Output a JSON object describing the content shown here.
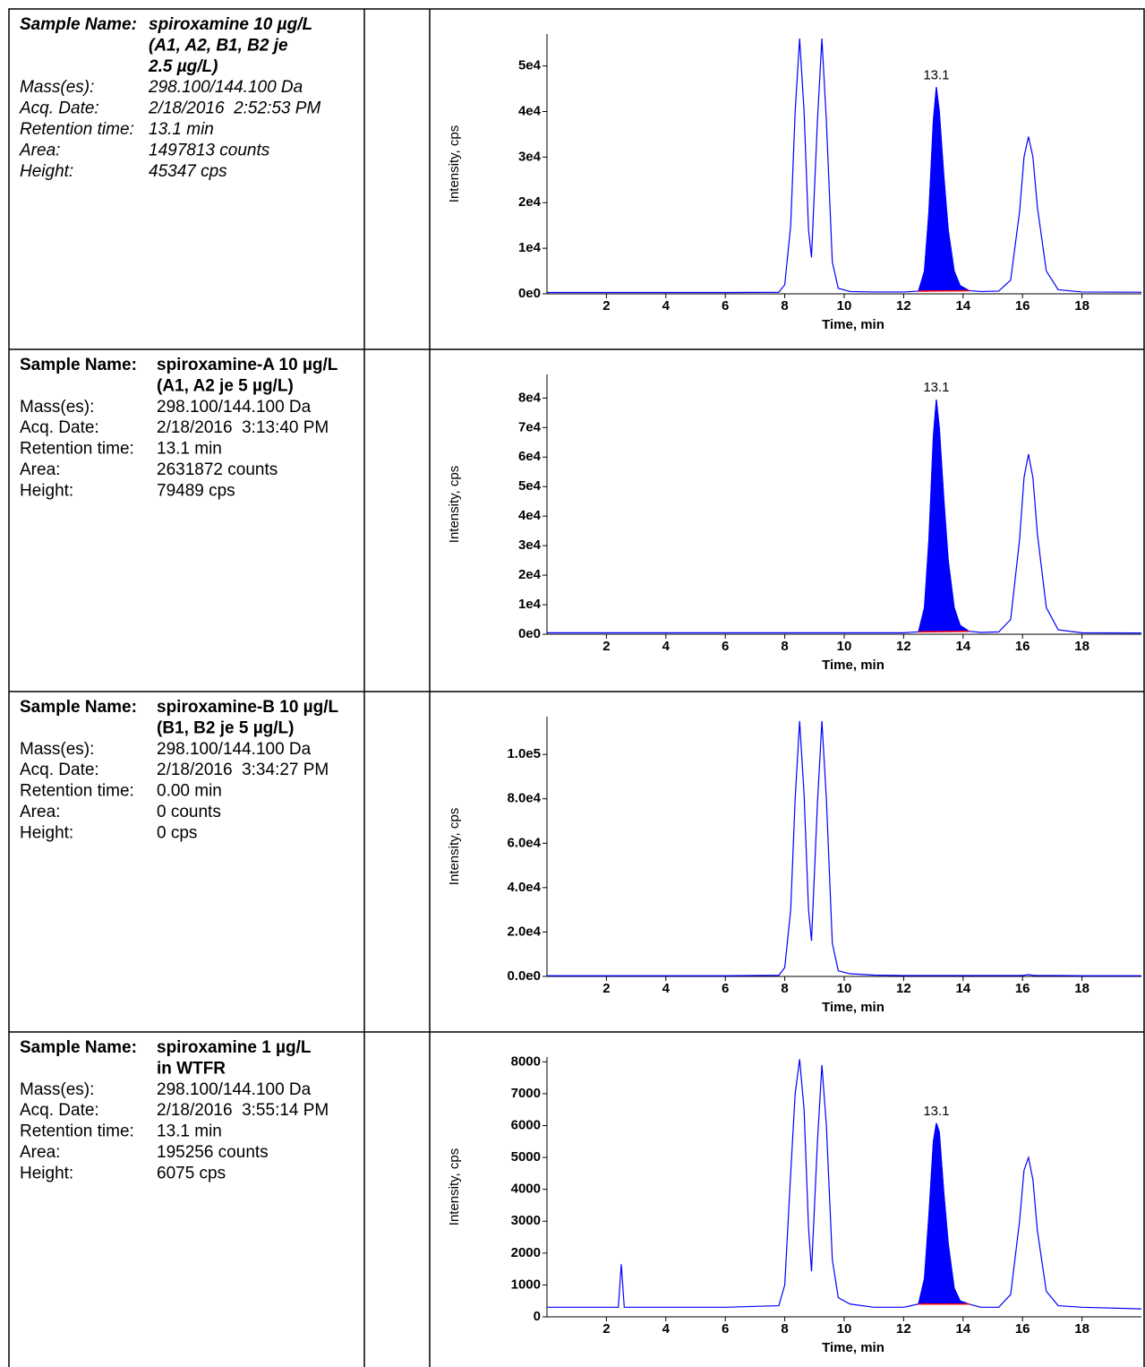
{
  "rows": [
    {
      "italic": true,
      "sample_name_label": "Sample Name:",
      "sample_name": [
        "spiroxamine 10 µg/L",
        "(A1, A2, B1, B2 je",
        "2.5 µg/L)"
      ],
      "fields": [
        [
          "Mass(es):",
          "298.100/144.100 Da"
        ],
        [
          "Acq. Date:",
          "2/18/2016  2:52:53 PM"
        ],
        [
          "Retention time:",
          "13.1 min"
        ],
        [
          "Area:",
          "1497813 counts"
        ],
        [
          "Height:",
          "45347 cps"
        ]
      ]
    },
    {
      "italic": false,
      "sample_name_label": "Sample Name:",
      "sample_name": [
        "spiroxamine-A 10 µg/L",
        "(A1, A2 je 5 µg/L)"
      ],
      "fields": [
        [
          "Mass(es):",
          "298.100/144.100 Da"
        ],
        [
          "Acq. Date:",
          "2/18/2016  3:13:40 PM"
        ],
        [
          "Retention time:",
          "13.1 min"
        ],
        [
          "Area:",
          "2631872 counts"
        ],
        [
          "Height:",
          "79489 cps"
        ]
      ]
    },
    {
      "italic": false,
      "sample_name_label": "Sample Name:",
      "sample_name": [
        "spiroxamine-B 10 µg/L",
        "(B1, B2 je 5 µg/L)"
      ],
      "fields": [
        [
          "Mass(es):",
          "298.100/144.100 Da"
        ],
        [
          "Acq. Date:",
          "2/18/2016  3:34:27 PM"
        ],
        [
          "Retention time:",
          "0.00 min"
        ],
        [
          "Area:",
          "0 counts"
        ],
        [
          "Height:",
          "0 cps"
        ]
      ]
    },
    {
      "italic": false,
      "sample_name_label": "Sample Name:",
      "sample_name": [
        "spiroxamine 1 µg/L",
        "in WTFR"
      ],
      "fields": [
        [
          "Mass(es):",
          "298.100/144.100 Da"
        ],
        [
          "Acq. Date:",
          "2/18/2016  3:55:14 PM"
        ],
        [
          "Retention time:",
          "13.1 min"
        ],
        [
          "Area:",
          "195256 counts"
        ],
        [
          "Height:",
          "6075 cps"
        ]
      ]
    }
  ],
  "chart_data": [
    {
      "type": "line",
      "x_label": "Time, min",
      "y_label": "Intensity, cps",
      "annotation": "13.1",
      "xlim": [
        0,
        20
      ],
      "xticks": [
        2,
        4,
        6,
        8,
        10,
        12,
        14,
        16,
        18
      ],
      "ylim": [
        0,
        57000
      ],
      "yticks": [
        {
          "value": 0,
          "label": "0e0"
        },
        {
          "value": 10000,
          "label": "1e4"
        },
        {
          "value": 20000,
          "label": "2e4"
        },
        {
          "value": 30000,
          "label": "3e4"
        },
        {
          "value": 40000,
          "label": "4e4"
        },
        {
          "value": 50000,
          "label": "5e4"
        }
      ],
      "x": [
        0,
        2,
        2.4,
        2.5,
        2.6,
        4,
        6,
        7.8,
        8,
        8.2,
        8.35,
        8.5,
        8.65,
        8.8,
        8.9,
        9.1,
        9.25,
        9.4,
        9.6,
        9.8,
        10.2,
        11,
        12,
        12.5,
        12.7,
        12.85,
        13,
        13.1,
        13.2,
        13.35,
        13.5,
        13.7,
        13.9,
        14.2,
        14.6,
        15.2,
        15.6,
        15.9,
        16.05,
        16.2,
        16.35,
        16.5,
        16.8,
        17.2,
        18,
        20
      ],
      "series": [
        {
          "color": "#0000ff",
          "fill": false,
          "values": [
            300,
            300,
            300,
            300,
            300,
            300,
            300,
            350,
            2000,
            15000,
            40000,
            56000,
            40000,
            14000,
            8000,
            38000,
            56000,
            38000,
            7000,
            1200,
            500,
            400,
            400,
            600,
            5000,
            18000,
            38000,
            45347,
            40000,
            26000,
            14000,
            5000,
            1800,
            700,
            500,
            600,
            3000,
            18000,
            30000,
            34500,
            30000,
            19000,
            5000,
            900,
            400,
            350
          ]
        },
        {
          "color": "#0000ff",
          "fill": true,
          "values": [
            null,
            null,
            null,
            null,
            null,
            null,
            null,
            null,
            null,
            null,
            null,
            null,
            null,
            null,
            null,
            null,
            null,
            null,
            null,
            null,
            null,
            null,
            null,
            600,
            5000,
            18000,
            38000,
            45347,
            40000,
            26000,
            14000,
            5000,
            1800,
            700,
            null,
            null,
            null,
            null,
            null,
            null,
            null,
            null,
            null,
            null,
            null,
            null
          ]
        }
      ]
    },
    {
      "type": "line",
      "x_label": "Time, min",
      "y_label": "Intensity, cps",
      "annotation": "13.1",
      "xlim": [
        0,
        20
      ],
      "xticks": [
        2,
        4,
        6,
        8,
        10,
        12,
        14,
        16,
        18
      ],
      "ylim": [
        0,
        88000
      ],
      "yticks": [
        {
          "value": 0,
          "label": "0e0"
        },
        {
          "value": 10000,
          "label": "1e4"
        },
        {
          "value": 20000,
          "label": "2e4"
        },
        {
          "value": 30000,
          "label": "3e4"
        },
        {
          "value": 40000,
          "label": "4e4"
        },
        {
          "value": 50000,
          "label": "5e4"
        },
        {
          "value": 60000,
          "label": "6e4"
        },
        {
          "value": 70000,
          "label": "7e4"
        },
        {
          "value": 80000,
          "label": "8e4"
        }
      ],
      "x": [
        0,
        2,
        2.4,
        2.5,
        2.6,
        4,
        6,
        7.8,
        8,
        8.2,
        8.35,
        8.5,
        8.65,
        8.8,
        8.9,
        9.1,
        9.25,
        9.4,
        9.6,
        9.8,
        10.2,
        11,
        12,
        12.5,
        12.7,
        12.85,
        13,
        13.1,
        13.2,
        13.35,
        13.5,
        13.7,
        13.9,
        14.2,
        14.6,
        15.2,
        15.6,
        15.9,
        16.05,
        16.2,
        16.35,
        16.5,
        16.8,
        17.2,
        18,
        20
      ],
      "series": [
        {
          "color": "#0000ff",
          "fill": false,
          "values": [
            500,
            500,
            500,
            500,
            500,
            500,
            500,
            500,
            500,
            500,
            500,
            500,
            500,
            500,
            500,
            500,
            500,
            500,
            500,
            500,
            500,
            500,
            500,
            800,
            9000,
            32000,
            67000,
            79489,
            70000,
            46000,
            25000,
            9000,
            3000,
            1000,
            600,
            800,
            5000,
            32000,
            53000,
            61000,
            53000,
            34000,
            9000,
            1500,
            500,
            400
          ]
        },
        {
          "color": "#0000ff",
          "fill": true,
          "values": [
            null,
            null,
            null,
            null,
            null,
            null,
            null,
            null,
            null,
            null,
            null,
            null,
            null,
            null,
            null,
            null,
            null,
            null,
            null,
            null,
            null,
            null,
            null,
            800,
            9000,
            32000,
            67000,
            79489,
            70000,
            46000,
            25000,
            9000,
            3000,
            1000,
            null,
            null,
            null,
            null,
            null,
            null,
            null,
            null,
            null,
            null,
            null,
            null
          ]
        }
      ]
    },
    {
      "type": "line",
      "x_label": "Time, min",
      "y_label": "Intensity, cps",
      "xlim": [
        0,
        20
      ],
      "xticks": [
        2,
        4,
        6,
        8,
        10,
        12,
        14,
        16,
        18
      ],
      "ylim": [
        0,
        117000
      ],
      "yticks": [
        {
          "value": 0,
          "label": "0.0e0"
        },
        {
          "value": 20000,
          "label": "2.0e4"
        },
        {
          "value": 40000,
          "label": "4.0e4"
        },
        {
          "value": 60000,
          "label": "6.0e4"
        },
        {
          "value": 80000,
          "label": "8.0e4"
        },
        {
          "value": 100000,
          "label": "1.0e5"
        }
      ],
      "x": [
        0,
        2,
        2.4,
        2.5,
        2.6,
        4,
        6,
        7.8,
        8,
        8.2,
        8.35,
        8.5,
        8.65,
        8.8,
        8.9,
        9.1,
        9.25,
        9.4,
        9.6,
        9.8,
        10.2,
        11,
        12,
        12.5,
        12.7,
        12.85,
        13,
        13.1,
        13.2,
        13.35,
        13.5,
        13.7,
        13.9,
        14.2,
        14.6,
        15.2,
        15.6,
        15.9,
        16.05,
        16.2,
        16.35,
        16.5,
        16.8,
        17.2,
        18,
        20
      ],
      "series": [
        {
          "color": "#0000ff",
          "fill": false,
          "values": [
            300,
            300,
            300,
            300,
            300,
            300,
            300,
            500,
            4000,
            30000,
            80000,
            115000,
            82000,
            30000,
            16000,
            78000,
            115000,
            80000,
            15000,
            2500,
            1200,
            600,
            400,
            400,
            400,
            400,
            400,
            400,
            400,
            400,
            400,
            400,
            400,
            400,
            400,
            400,
            400,
            400,
            500,
            800,
            500,
            400,
            400,
            400,
            300,
            300
          ]
        }
      ]
    },
    {
      "type": "line",
      "x_label": "Time, min",
      "y_label": "Intensity, cps",
      "annotation": "13.1",
      "xlim": [
        0,
        20
      ],
      "xticks": [
        2,
        4,
        6,
        8,
        10,
        12,
        14,
        16,
        18
      ],
      "ylim": [
        0,
        8150
      ],
      "yticks": [
        0,
        1000,
        2000,
        3000,
        4000,
        5000,
        6000,
        7000,
        8000
      ],
      "x": [
        0,
        2,
        2.4,
        2.5,
        2.6,
        4,
        6,
        7.8,
        8,
        8.2,
        8.35,
        8.5,
        8.65,
        8.8,
        8.9,
        9.1,
        9.25,
        9.4,
        9.6,
        9.8,
        10.2,
        11,
        12,
        12.5,
        12.7,
        12.85,
        13,
        13.1,
        13.2,
        13.35,
        13.5,
        13.7,
        13.9,
        14.2,
        14.6,
        15.2,
        15.6,
        15.9,
        16.05,
        16.2,
        16.35,
        16.5,
        16.8,
        17.2,
        18,
        20
      ],
      "series": [
        {
          "color": "#0000ff",
          "fill": false,
          "values": [
            300,
            300,
            300,
            1650,
            300,
            300,
            300,
            350,
            1000,
            4500,
            7000,
            8080,
            6500,
            2800,
            1430,
            5500,
            7900,
            6000,
            1800,
            600,
            400,
            300,
            300,
            400,
            1200,
            3200,
            5500,
            6075,
            5800,
            3900,
            2300,
            900,
            500,
            400,
            300,
            300,
            700,
            3000,
            4600,
            5000,
            4300,
            2700,
            800,
            350,
            300,
            250
          ]
        },
        {
          "color": "#0000ff",
          "fill": true,
          "values": [
            null,
            null,
            null,
            null,
            null,
            null,
            null,
            null,
            null,
            null,
            null,
            null,
            null,
            null,
            null,
            null,
            null,
            null,
            null,
            null,
            null,
            null,
            null,
            400,
            1200,
            3200,
            5500,
            6075,
            5800,
            3900,
            2300,
            900,
            500,
            400,
            null,
            null,
            null,
            null,
            null,
            null,
            null,
            null,
            null,
            null,
            null,
            null
          ]
        }
      ]
    }
  ]
}
